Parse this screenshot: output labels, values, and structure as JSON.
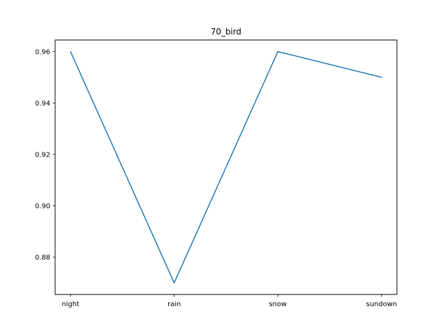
{
  "chart_data": {
    "type": "line",
    "title": "70_bird",
    "xlabel": "",
    "ylabel": "",
    "categories": [
      "night",
      "rain",
      "snow",
      "sundown"
    ],
    "series": [
      {
        "values": [
          0.96,
          0.87,
          0.96,
          0.95
        ],
        "color": "#1f77b4"
      }
    ],
    "yticks": [
      0.88,
      0.9,
      0.92,
      0.94,
      0.96
    ],
    "ytick_labels": [
      "0.88",
      "0.90",
      "0.92",
      "0.94",
      "0.96"
    ],
    "ylim": [
      0.8655,
      0.9645
    ],
    "grid": false,
    "legend": "none"
  }
}
